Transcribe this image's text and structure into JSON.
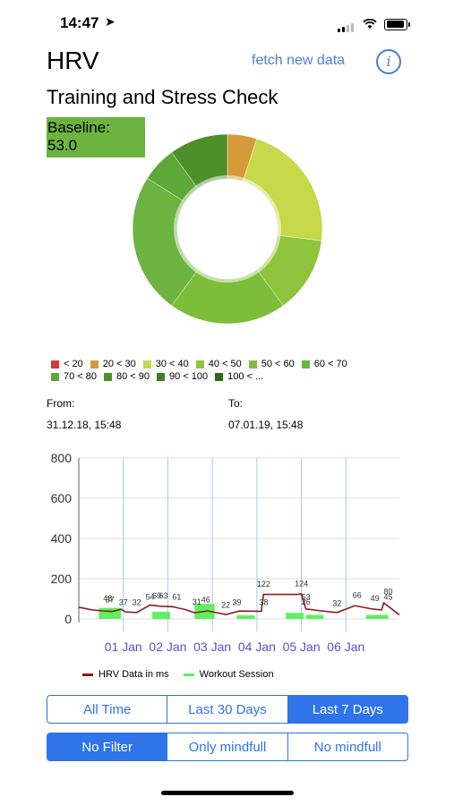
{
  "status": {
    "time": "14:47"
  },
  "header": {
    "title": "HRV",
    "fetch_label": "fetch new data",
    "info_glyph": "i"
  },
  "section": {
    "subtitle": "Training and Stress Check",
    "baseline_label": "Baseline:",
    "baseline_value": "53.0"
  },
  "donut": {
    "slices": [
      {
        "label": "20 < 30",
        "value": 5,
        "color": "#d49a37"
      },
      {
        "label": "30 < 40",
        "value": 22,
        "color": "#c5d94a"
      },
      {
        "label": "40 < 50",
        "value": 13,
        "color": "#8fc43c"
      },
      {
        "label": "50 < 60",
        "value": 20,
        "color": "#7cbd3a"
      },
      {
        "label": "60 < 70",
        "value": 24,
        "color": "#6cb33f"
      },
      {
        "label": "70 < 80",
        "value": 6,
        "color": "#5ea83a"
      },
      {
        "label": "80 < 90",
        "value": 10,
        "color": "#4e8f2a"
      }
    ]
  },
  "legend": {
    "row1": [
      {
        "label": "< 20",
        "color": "#d33b3b"
      },
      {
        "label": "20 < 30",
        "color": "#d49a37"
      },
      {
        "label": "30 < 40",
        "color": "#c5d94a"
      },
      {
        "label": "40 < 50",
        "color": "#8fc43c"
      },
      {
        "label": "50 < 60",
        "color": "#7cbd3a"
      },
      {
        "label": "60 < 70",
        "color": "#6cb33f"
      }
    ],
    "row2": [
      {
        "label": "70 < 80",
        "color": "#5ea83a"
      },
      {
        "label": "80 < 90",
        "color": "#4e8f2a"
      },
      {
        "label": "90 < 100",
        "color": "#3f7f22"
      },
      {
        "label": "100 < ...",
        "color": "#2f6a18"
      }
    ]
  },
  "range": {
    "from_label": "From:",
    "from_value": "31.12.18, 15:48",
    "to_label": "To:",
    "to_value": "07.01.19, 15:48"
  },
  "chart_data": {
    "type": "line",
    "yticks": [
      "800",
      "600",
      "400",
      "200",
      "0"
    ],
    "ylim": [
      0,
      850
    ],
    "xticks": [
      "01 Jan",
      "02 Jan",
      "03 Jan",
      "04 Jan",
      "05 Jan",
      "06 Jan"
    ],
    "series": [
      {
        "name": "HRV Data in ms",
        "color": "#8b1a1a",
        "points": [
          [
            0,
            58
          ],
          [
            0.3,
            45
          ],
          [
            0.55,
            40
          ],
          [
            0.75,
            37
          ],
          [
            0.95,
            48
          ],
          [
            1.05,
            35
          ],
          [
            1.3,
            32
          ],
          [
            1.6,
            69
          ],
          [
            1.85,
            63
          ],
          [
            2.1,
            61
          ],
          [
            2.4,
            46
          ],
          [
            2.6,
            31
          ],
          [
            2.9,
            40
          ],
          [
            3.3,
            22
          ],
          [
            3.6,
            39
          ],
          [
            4.1,
            38
          ],
          [
            4.15,
            122
          ],
          [
            4.9,
            122
          ],
          [
            5.0,
            124
          ],
          [
            5.1,
            50
          ],
          [
            5.45,
            40
          ],
          [
            5.8,
            32
          ],
          [
            6.2,
            66
          ],
          [
            6.6,
            49
          ],
          [
            6.8,
            45
          ],
          [
            6.85,
            80
          ],
          [
            7.2,
            20
          ]
        ]
      },
      {
        "name": "Workout Session",
        "color": "#5ff05f",
        "bars": [
          [
            0.45,
            0.95,
            55
          ],
          [
            1.65,
            2.05,
            35
          ],
          [
            2.6,
            3.05,
            75
          ],
          [
            3.55,
            3.95,
            18
          ],
          [
            4.65,
            5.05,
            30
          ],
          [
            5.1,
            5.5,
            20
          ],
          [
            6.45,
            6.95,
            20
          ]
        ]
      }
    ],
    "labels": [
      {
        "x": 0.65,
        "y": 88,
        "t": "48"
      },
      {
        "x": 0.7,
        "y": 82,
        "t": "37"
      },
      {
        "x": 1.0,
        "y": 68,
        "t": "37"
      },
      {
        "x": 1.3,
        "y": 70,
        "t": "32"
      },
      {
        "x": 1.6,
        "y": 95,
        "t": "54"
      },
      {
        "x": 1.75,
        "y": 103,
        "t": "69"
      },
      {
        "x": 1.9,
        "y": 103,
        "t": "63"
      },
      {
        "x": 2.2,
        "y": 95,
        "t": "61"
      },
      {
        "x": 2.65,
        "y": 72,
        "t": "31"
      },
      {
        "x": 2.85,
        "y": 82,
        "t": "46"
      },
      {
        "x": 3.3,
        "y": 55,
        "t": "22"
      },
      {
        "x": 3.55,
        "y": 68,
        "t": "39"
      },
      {
        "x": 4.15,
        "y": 70,
        "t": "38"
      },
      {
        "x": 4.15,
        "y": 160,
        "t": "122"
      },
      {
        "x": 5.0,
        "y": 163,
        "t": "124"
      },
      {
        "x": 5.1,
        "y": 95,
        "t": "53"
      },
      {
        "x": 5.1,
        "y": 72,
        "t": "26"
      },
      {
        "x": 5.8,
        "y": 65,
        "t": "32"
      },
      {
        "x": 6.25,
        "y": 105,
        "t": "66"
      },
      {
        "x": 6.65,
        "y": 90,
        "t": "49"
      },
      {
        "x": 6.95,
        "y": 122,
        "t": "80"
      },
      {
        "x": 6.95,
        "y": 95,
        "t": "45"
      }
    ],
    "legend": [
      {
        "label": "HRV Data in ms"
      },
      {
        "label": "Workout Session"
      }
    ]
  },
  "filters": {
    "time": [
      "All Time",
      "Last 30 Days",
      "Last 7 Days"
    ],
    "time_active": 2,
    "mind": [
      "No Filter",
      "Only mindfull",
      "No mindfull"
    ],
    "mind_active": 0
  }
}
